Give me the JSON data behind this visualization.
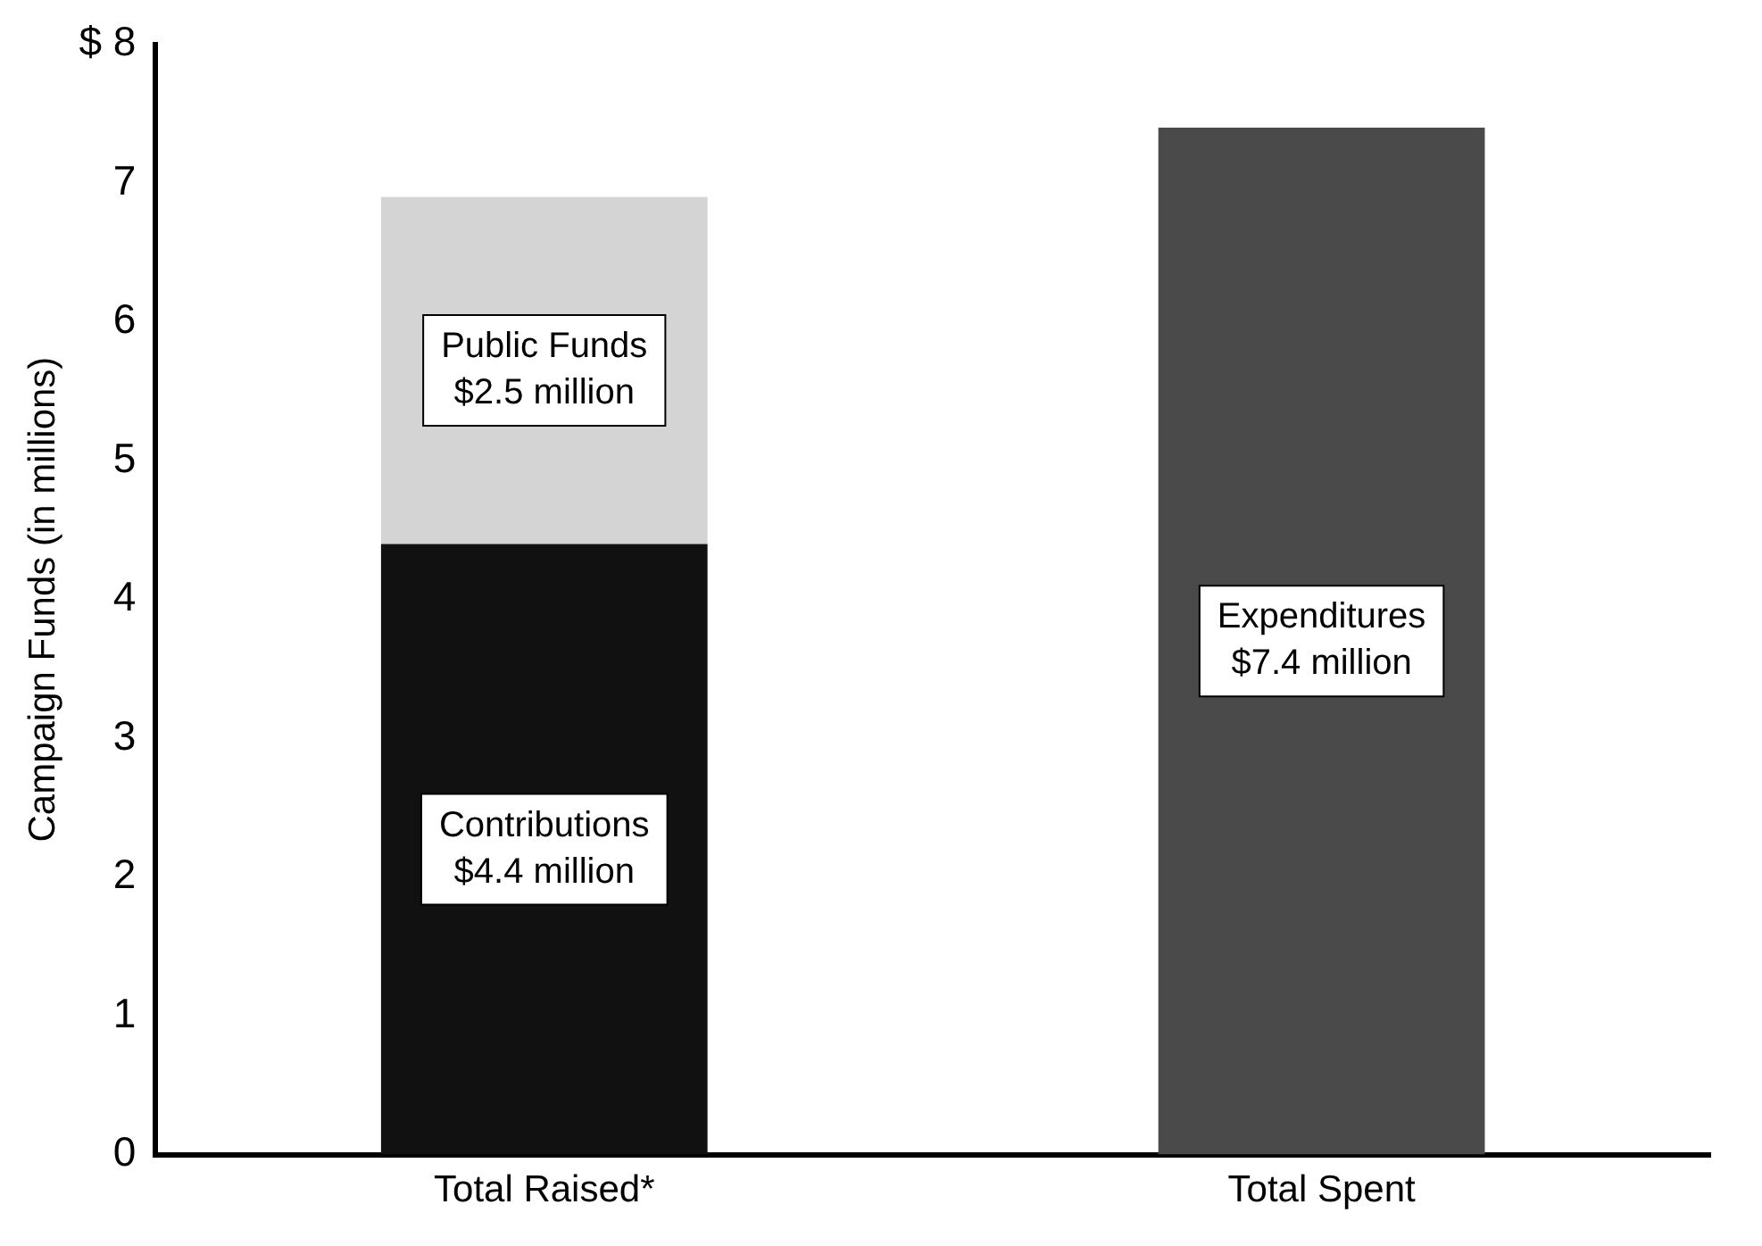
{
  "chart_data": {
    "type": "bar",
    "ylabel": "Campaign Funds (in millions)",
    "categories": [
      "Total Raised*",
      "Total Spent"
    ],
    "stacked": true,
    "legend": false,
    "grid": false,
    "ylim": [
      0,
      8
    ],
    "yticks": [
      0,
      1,
      2,
      3,
      4,
      5,
      6,
      7,
      {
        "value": 8,
        "label": "$ 8"
      }
    ],
    "series": [
      {
        "name": "Contributions",
        "color": "#111111",
        "values": [
          4.4,
          null
        ],
        "value_labels": [
          "$4.4 million",
          null
        ]
      },
      {
        "name": "Public Funds",
        "color": "#d4d4d4",
        "values": [
          2.5,
          null
        ],
        "value_labels": [
          "$2.5 million",
          null
        ]
      },
      {
        "name": "Expenditures",
        "color": "#4a4a4a",
        "values": [
          null,
          7.4
        ],
        "value_labels": [
          null,
          "$7.4 million"
        ]
      }
    ]
  }
}
